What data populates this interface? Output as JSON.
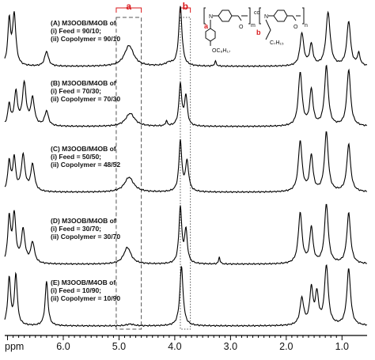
{
  "chart_data": {
    "type": "line",
    "xlabel": "ppm",
    "x_reversed": true,
    "xlim": [
      0.55,
      7.05
    ],
    "ticks": [
      {
        "value": 6.0,
        "label": "6.0"
      },
      {
        "value": 5.0,
        "label": "5.0"
      },
      {
        "value": 4.0,
        "label": "4.0"
      },
      {
        "value": 3.0,
        "label": "3.0"
      },
      {
        "value": 2.0,
        "label": "2.0"
      },
      {
        "value": 1.0,
        "label": "1.0"
      }
    ],
    "regions": [
      {
        "tag": "a",
        "from_ppm": 5.05,
        "to_ppm": 4.6,
        "style": "dashed",
        "color": "#d9191c"
      },
      {
        "tag": "b",
        "from_ppm": 3.9,
        "to_ppm": 3.72,
        "style": "dotted",
        "color": "#d9191c"
      }
    ],
    "panels": [
      {
        "label_lines": [
          "(A) M3OOB/M4OB of",
          "(i) Feed = 90/10;",
          "(ii) Copolymer = 90/10"
        ],
        "peaks": [
          [
            6.97,
            0.75,
            0.03
          ],
          [
            6.88,
            0.85,
            0.035
          ],
          [
            6.3,
            0.25,
            0.04
          ],
          [
            4.82,
            0.35,
            0.1
          ],
          [
            4.1,
            0.05,
            0.08
          ],
          [
            3.9,
            1.0,
            0.035
          ],
          [
            3.27,
            0.08,
            0.02
          ],
          [
            1.72,
            0.55,
            0.04
          ],
          [
            1.55,
            0.35,
            0.035
          ],
          [
            1.25,
            0.9,
            0.045
          ],
          [
            0.88,
            0.75,
            0.04
          ],
          [
            0.7,
            0.2,
            0.03
          ]
        ]
      },
      {
        "label_lines": [
          "(B) M3OOB/M4OB of",
          "(i) Feed = 70/30;",
          "(ii) Copolymer = 70/30"
        ],
        "peaks": [
          [
            6.97,
            0.35,
            0.03
          ],
          [
            6.85,
            0.55,
            0.035
          ],
          [
            6.7,
            0.7,
            0.04
          ],
          [
            6.55,
            0.45,
            0.04
          ],
          [
            6.3,
            0.25,
            0.04
          ],
          [
            4.8,
            0.22,
            0.1
          ],
          [
            4.15,
            0.08,
            0.02
          ],
          [
            3.9,
            0.7,
            0.03
          ],
          [
            3.8,
            0.5,
            0.03
          ],
          [
            1.75,
            0.9,
            0.04
          ],
          [
            1.55,
            0.6,
            0.035
          ],
          [
            1.28,
            1.0,
            0.04
          ],
          [
            0.88,
            0.95,
            0.04
          ]
        ]
      },
      {
        "label_lines": [
          "(C) M3OOB/M4OB of",
          "(i) Feed = 50/50;",
          "(ii) Copolymer = 48/52"
        ],
        "peaks": [
          [
            6.97,
            0.5,
            0.03
          ],
          [
            6.88,
            0.55,
            0.03
          ],
          [
            6.72,
            0.6,
            0.04
          ],
          [
            6.55,
            0.45,
            0.04
          ],
          [
            4.82,
            0.25,
            0.1
          ],
          [
            3.9,
            0.85,
            0.03
          ],
          [
            3.78,
            0.5,
            0.035
          ],
          [
            1.75,
            0.85,
            0.04
          ],
          [
            1.55,
            0.6,
            0.035
          ],
          [
            1.28,
            1.0,
            0.04
          ],
          [
            0.88,
            0.8,
            0.04
          ]
        ]
      },
      {
        "label_lines": [
          "(D) M3OOB/M4OB of",
          "(i) Feed = 30/70;",
          "(ii) Copolymer = 30/70"
        ],
        "peaks": [
          [
            6.97,
            0.75,
            0.03
          ],
          [
            6.88,
            0.8,
            0.035
          ],
          [
            6.72,
            0.55,
            0.04
          ],
          [
            6.55,
            0.35,
            0.04
          ],
          [
            4.85,
            0.28,
            0.08
          ],
          [
            3.9,
            0.95,
            0.03
          ],
          [
            3.8,
            0.55,
            0.03
          ],
          [
            3.2,
            0.12,
            0.015
          ],
          [
            1.75,
            0.85,
            0.04
          ],
          [
            1.55,
            0.6,
            0.035
          ],
          [
            1.28,
            1.0,
            0.04
          ],
          [
            0.88,
            0.85,
            0.04
          ]
        ]
      },
      {
        "label_lines": [
          "(E) M3OOB/M4OB of",
          "(i) Feed = 10/90;",
          "(ii) Copolymer = 10/90"
        ],
        "peaks": [
          [
            6.97,
            0.8,
            0.03
          ],
          [
            6.85,
            0.85,
            0.03
          ],
          [
            6.3,
            0.75,
            0.03
          ],
          [
            4.8,
            0.03,
            0.08
          ],
          [
            3.88,
            1.0,
            0.035
          ],
          [
            1.72,
            0.45,
            0.04
          ],
          [
            1.55,
            0.6,
            0.035
          ],
          [
            1.45,
            0.5,
            0.035
          ],
          [
            1.28,
            1.0,
            0.04
          ],
          [
            0.88,
            0.95,
            0.04
          ]
        ]
      }
    ],
    "structure": {
      "tag_a": "a",
      "tag_b": "b",
      "substituent_left": "OC₈H₁₇",
      "substituent_right": "C₇H₁₅",
      "repeat_left": "m",
      "repeat_right": "n",
      "link": "co"
    }
  }
}
